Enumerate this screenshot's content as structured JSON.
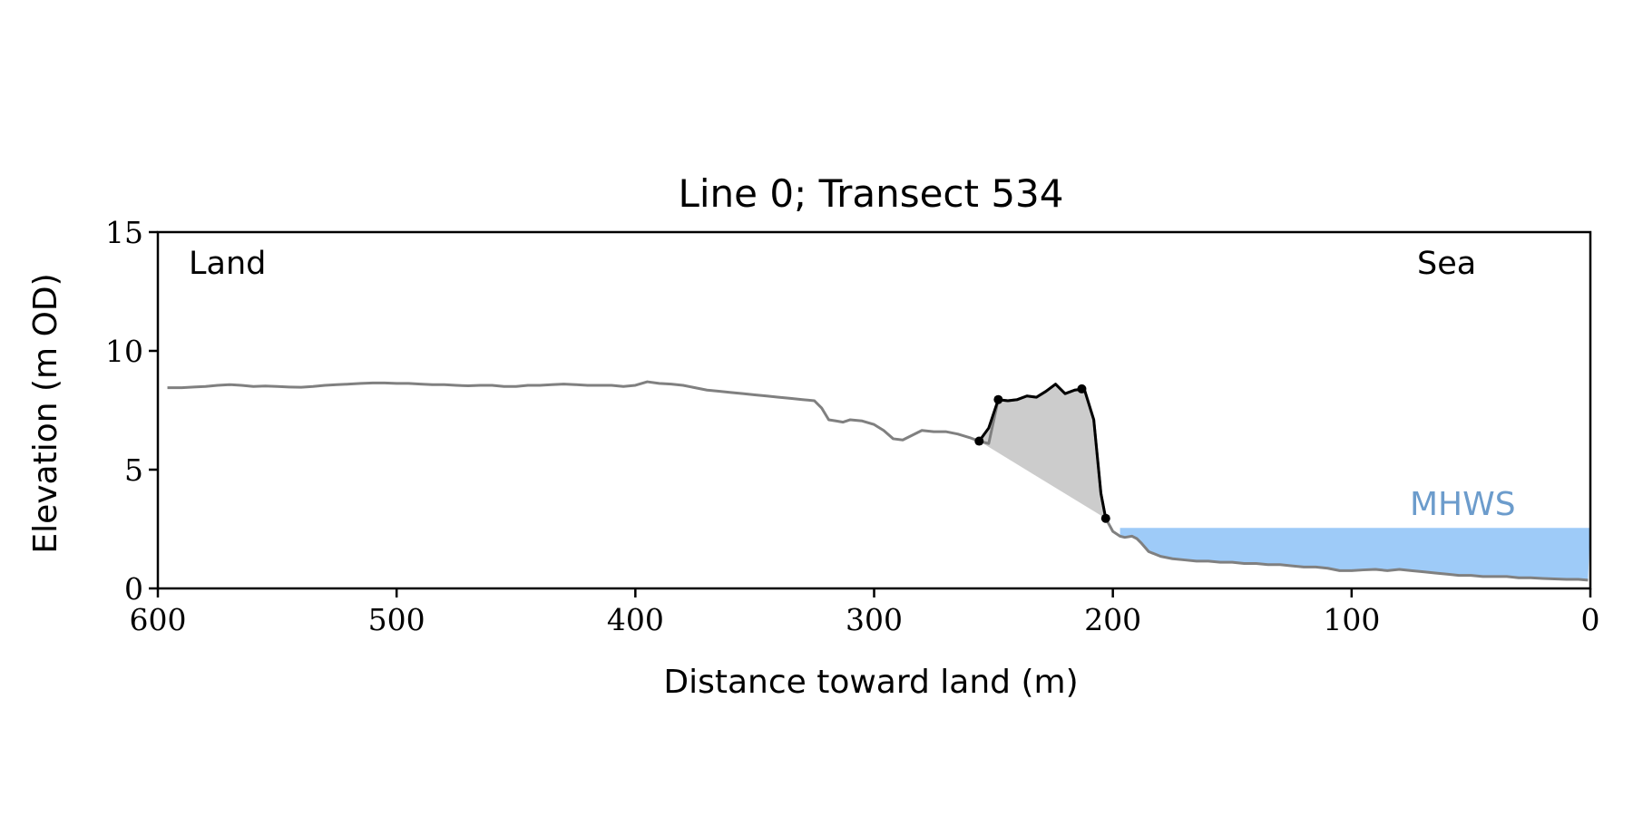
{
  "chart_data": {
    "type": "line",
    "title": "Line 0; Transect 534",
    "xlabel": "Distance toward land (m)",
    "ylabel": "Elevation (m OD)",
    "xlim": [
      600,
      0
    ],
    "ylim": [
      0,
      15
    ],
    "x_reversed": true,
    "xticks": [
      600,
      500,
      400,
      300,
      200,
      100,
      0
    ],
    "yticks": [
      0,
      5,
      10,
      15
    ],
    "grid": false,
    "annotations": {
      "land_label": "Land",
      "sea_label": "Sea",
      "mhws_label": "MHWS"
    },
    "mhws": {
      "level": 2.55,
      "x_from": 197,
      "x_to": 0
    },
    "colors": {
      "profile": "#808080",
      "feature": "#000000",
      "fill": "#cccccc",
      "water": "#9ecbf8",
      "mhws_text": "#6c9ccc"
    },
    "profile": {
      "name": "",
      "x": [
        596,
        590,
        585,
        580,
        575,
        570,
        565,
        560,
        555,
        550,
        545,
        540,
        535,
        530,
        525,
        520,
        515,
        510,
        505,
        500,
        495,
        490,
        485,
        480,
        475,
        470,
        465,
        460,
        455,
        450,
        445,
        440,
        435,
        430,
        425,
        420,
        415,
        410,
        405,
        400,
        395,
        390,
        385,
        380,
        375,
        370,
        365,
        360,
        355,
        350,
        345,
        340,
        335,
        330,
        325,
        322,
        319,
        316,
        313,
        310,
        305,
        300,
        296,
        292,
        288,
        284,
        280,
        275,
        270,
        265,
        260,
        256,
        252,
        248,
        244,
        240,
        236,
        232,
        228,
        224,
        220,
        216,
        212,
        208,
        205,
        203,
        200,
        197,
        195,
        192,
        190,
        188,
        185,
        180,
        175,
        170,
        165,
        160,
        155,
        150,
        145,
        140,
        135,
        130,
        125,
        120,
        115,
        110,
        105,
        100,
        95,
        90,
        85,
        80,
        75,
        70,
        65,
        60,
        55,
        50,
        45,
        40,
        35,
        30,
        25,
        20,
        15,
        10,
        5,
        1
      ],
      "y": [
        8.45,
        8.45,
        8.48,
        8.5,
        8.55,
        8.58,
        8.55,
        8.5,
        8.52,
        8.5,
        8.48,
        8.47,
        8.5,
        8.55,
        8.58,
        8.6,
        8.63,
        8.65,
        8.65,
        8.63,
        8.63,
        8.6,
        8.58,
        8.58,
        8.55,
        8.53,
        8.55,
        8.55,
        8.5,
        8.5,
        8.55,
        8.55,
        8.58,
        8.6,
        8.58,
        8.55,
        8.55,
        8.55,
        8.5,
        8.55,
        8.7,
        8.63,
        8.6,
        8.55,
        8.45,
        8.35,
        8.3,
        8.25,
        8.2,
        8.15,
        8.1,
        8.05,
        8.0,
        7.95,
        7.9,
        7.6,
        7.1,
        7.05,
        7.0,
        7.1,
        7.05,
        6.9,
        6.65,
        6.3,
        6.25,
        6.45,
        6.65,
        6.6,
        6.6,
        6.5,
        6.35,
        6.2,
        6.1,
        7.95,
        7.9,
        7.95,
        8.1,
        8.05,
        8.3,
        8.6,
        8.2,
        8.35,
        8.4,
        7.1,
        4.0,
        2.95,
        2.4,
        2.2,
        2.15,
        2.2,
        2.1,
        1.9,
        1.55,
        1.35,
        1.25,
        1.2,
        1.15,
        1.15,
        1.1,
        1.1,
        1.05,
        1.05,
        1.0,
        1.0,
        0.95,
        0.9,
        0.9,
        0.85,
        0.75,
        0.75,
        0.78,
        0.8,
        0.75,
        0.8,
        0.75,
        0.7,
        0.65,
        0.6,
        0.55,
        0.55,
        0.5,
        0.5,
        0.5,
        0.45,
        0.45,
        0.42,
        0.4,
        0.38,
        0.38,
        0.35
      ]
    },
    "feature": {
      "name": "",
      "x": [
        256,
        252,
        248,
        244,
        240,
        236,
        232,
        228,
        224,
        220,
        216,
        212,
        208,
        205,
        203
      ],
      "y": [
        6.2,
        6.75,
        7.95,
        7.9,
        7.95,
        8.1,
        8.05,
        8.3,
        8.6,
        8.2,
        8.35,
        8.4,
        7.1,
        4.0,
        2.95
      ]
    },
    "markers": {
      "x": [
        256,
        248,
        213,
        203
      ],
      "y": [
        6.2,
        7.95,
        8.4,
        2.95
      ]
    }
  }
}
